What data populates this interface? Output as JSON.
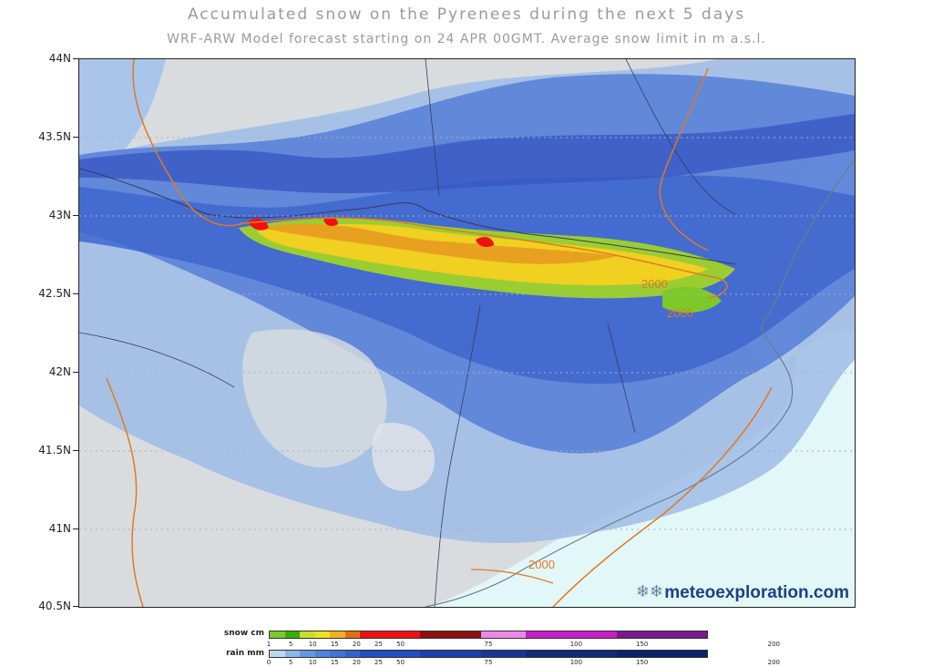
{
  "header": {
    "title": "Accumulated snow on the Pyrenees during the next 5 days",
    "subtitle": "WRF-ARW Model forecast starting on 24 APR 00GMT.  Average snow limit in m a.s.l."
  },
  "map": {
    "latitude_ticks": [
      "44N",
      "43.5N",
      "43N",
      "42.5N",
      "42N",
      "41.5N",
      "41N",
      "40.5N"
    ],
    "snow_limit_labels": [
      "2000",
      "2000",
      "2000"
    ],
    "brand": "meteoexploration.com",
    "colors": {
      "land": "#d8dcdf",
      "sea": "#e2f7f7",
      "rain_light": "#8eb6e6",
      "rain_mid": "#4f78d6",
      "rain_heavy": "#3a5fc9",
      "snow_limit_line": "#e07a22"
    }
  },
  "legend": {
    "snow": {
      "label": "snow cm",
      "ticks": [
        "1",
        "5",
        "10",
        "15",
        "20",
        "25",
        "50",
        "75",
        "100",
        "150",
        "200"
      ],
      "colors": [
        "#7cc92a",
        "#38b000",
        "#c7e02a",
        "#f0e020",
        "#f0b020",
        "#e07010",
        "#ee1111",
        "#8b0f0f",
        "#ee88e8",
        "#c81ec8",
        "#7a1a8c"
      ]
    },
    "rain": {
      "label": "rain mm",
      "ticks": [
        "0",
        "5",
        "10",
        "15",
        "20",
        "25",
        "50",
        "75",
        "100",
        "150",
        "200"
      ],
      "colors": [
        "#bcd6f2",
        "#8ab6ea",
        "#5f9ae2",
        "#4d85dc",
        "#3e74d6",
        "#2f64cf",
        "#1f4fc4",
        "#1a3fae",
        "#163595",
        "#0f2a7a",
        "#0b2066"
      ]
    }
  }
}
